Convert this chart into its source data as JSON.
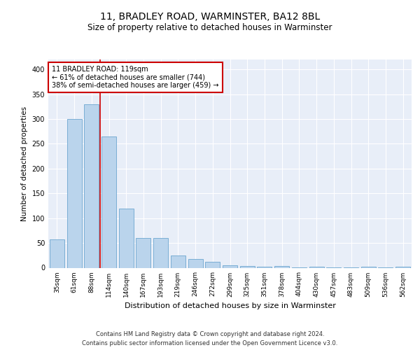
{
  "title1": "11, BRADLEY ROAD, WARMINSTER, BA12 8BL",
  "title2": "Size of property relative to detached houses in Warminster",
  "xlabel": "Distribution of detached houses by size in Warminster",
  "ylabel": "Number of detached properties",
  "footnote1": "Contains HM Land Registry data © Crown copyright and database right 2024.",
  "footnote2": "Contains public sector information licensed under the Open Government Licence v3.0.",
  "categories": [
    "35sqm",
    "61sqm",
    "88sqm",
    "114sqm",
    "140sqm",
    "167sqm",
    "193sqm",
    "219sqm",
    "246sqm",
    "272sqm",
    "299sqm",
    "325sqm",
    "351sqm",
    "378sqm",
    "404sqm",
    "430sqm",
    "457sqm",
    "483sqm",
    "509sqm",
    "536sqm",
    "562sqm"
  ],
  "values": [
    57,
    300,
    330,
    265,
    120,
    60,
    60,
    25,
    18,
    12,
    5,
    4,
    2,
    3,
    1,
    2,
    1,
    1,
    2,
    1,
    2
  ],
  "bar_color": "#bad4ec",
  "bar_edge_color": "#7aaed4",
  "vline_color": "#cc0000",
  "vline_x": 2.5,
  "annotation_title": "11 BRADLEY ROAD: 119sqm",
  "annotation_line1": "← 61% of detached houses are smaller (744)",
  "annotation_line2": "38% of semi-detached houses are larger (459) →",
  "annotation_box_color": "white",
  "annotation_box_edge_color": "#cc0000",
  "ylim": [
    0,
    420
  ],
  "yticks": [
    0,
    50,
    100,
    150,
    200,
    250,
    300,
    350,
    400
  ],
  "bg_color": "#e8eef8",
  "fig_bg_color": "#ffffff",
  "grid_color": "#ffffff",
  "title1_fontsize": 10,
  "title2_fontsize": 8.5,
  "ylabel_fontsize": 7.5,
  "xlabel_fontsize": 8,
  "ytick_fontsize": 7,
  "xtick_fontsize": 6.5,
  "ann_fontsize": 7,
  "footnote_fontsize": 6
}
